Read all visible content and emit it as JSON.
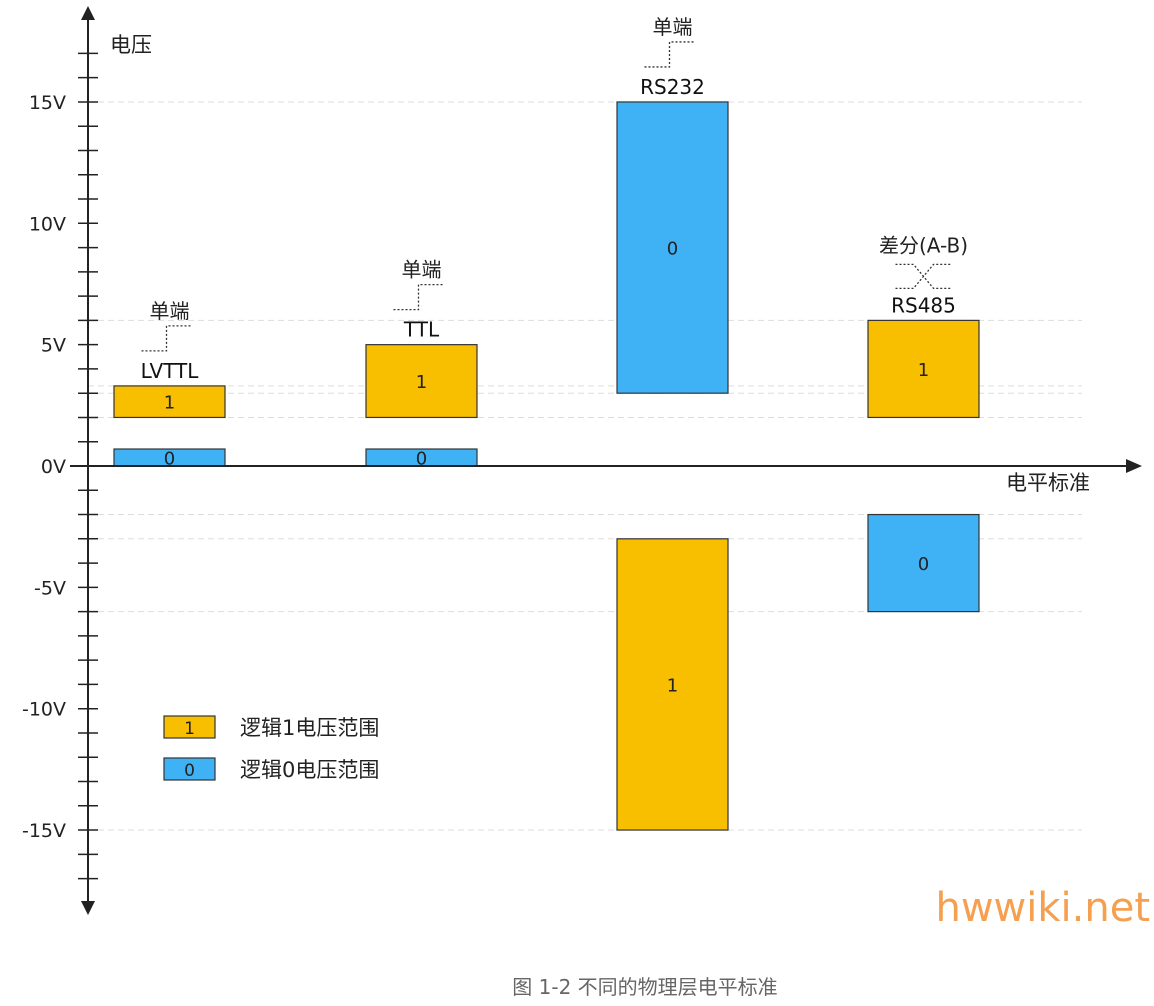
{
  "chart_data": {
    "type": "bar",
    "title": "图 1-2 不同的物理层电平标准",
    "ylabel": "电压",
    "xlabel": "电平标准",
    "ylim": [
      -18,
      19
    ],
    "yticks": [
      {
        "value": 15,
        "label": "15V"
      },
      {
        "value": 10,
        "label": "10V"
      },
      {
        "value": 5,
        "label": "5V"
      },
      {
        "value": 0,
        "label": "0V"
      },
      {
        "value": -5,
        "label": "-5V"
      },
      {
        "value": -10,
        "label": "-10V"
      },
      {
        "value": -15,
        "label": "-15V"
      }
    ],
    "gridlines": [
      15,
      6,
      3.3,
      3,
      2,
      -2,
      -3,
      -6,
      -15
    ],
    "colors": {
      "logic1": "#F8BE00",
      "logic0": "#3FB1F5"
    },
    "standards": [
      {
        "name": "LVTTL",
        "type_label": "单端",
        "signal": "single",
        "bars": [
          {
            "logic": "1",
            "low": 2.0,
            "high": 3.3
          },
          {
            "logic": "0",
            "low": 0,
            "high": 0.7
          }
        ]
      },
      {
        "name": "TTL",
        "type_label": "单端",
        "signal": "single",
        "bars": [
          {
            "logic": "1",
            "low": 2.0,
            "high": 5.0
          },
          {
            "logic": "0",
            "low": 0,
            "high": 0.7
          }
        ]
      },
      {
        "name": "RS232",
        "type_label": "单端",
        "signal": "single",
        "bars": [
          {
            "logic": "0",
            "low": 3,
            "high": 15
          },
          {
            "logic": "1",
            "low": -15,
            "high": -3
          }
        ]
      },
      {
        "name": "RS485",
        "type_label": "差分(A-B)",
        "signal": "differential",
        "bars": [
          {
            "logic": "1",
            "low": 2,
            "high": 6
          },
          {
            "logic": "0",
            "low": -6,
            "high": -2
          }
        ]
      }
    ],
    "legend": {
      "placement": "bottom-left",
      "entries": [
        {
          "logic": "1",
          "label": "逻辑1电压范围"
        },
        {
          "logic": "0",
          "label": "逻辑0电压范围"
        }
      ]
    }
  },
  "watermark": "hwwiki.net"
}
